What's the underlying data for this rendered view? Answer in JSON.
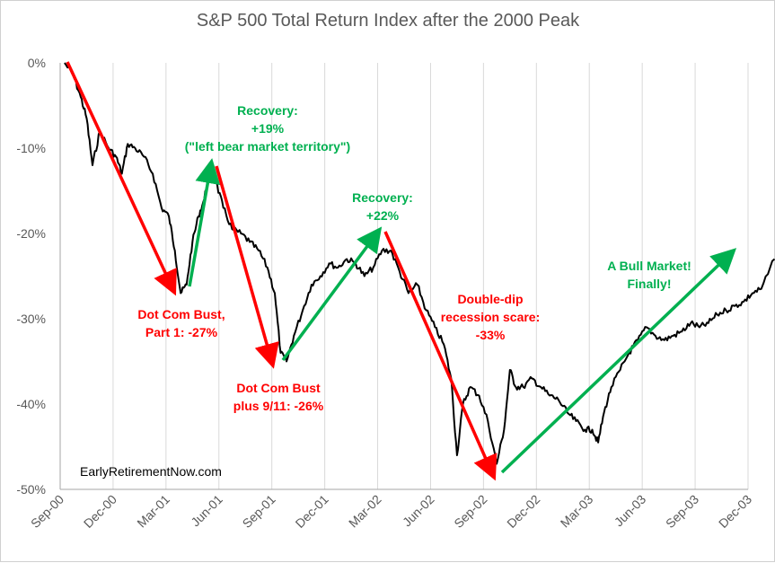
{
  "chart_data": {
    "type": "line",
    "title": "S&P 500 Total Return Index after the 2000 Peak",
    "watermark": "EarlyRetirementNow.com",
    "ylim": [
      -50,
      0
    ],
    "y_ticks": [
      "0%",
      "-10%",
      "-20%",
      "-30%",
      "-40%",
      "-50%"
    ],
    "y_tick_values": [
      0,
      -10,
      -20,
      -30,
      -40,
      -50
    ],
    "x_ticks": [
      "Sep-00",
      "Dec-00",
      "Mar-01",
      "Jun-01",
      "Sep-01",
      "Dec-01",
      "Mar-02",
      "Jun-02",
      "Sep-02",
      "Dec-02",
      "Mar-03",
      "Jun-03",
      "Sep-03",
      "Dec-03"
    ],
    "grid": "vertical",
    "series": [
      {
        "color": "#000000",
        "x": [
          "Sep-00",
          "Sep-00",
          "Oct-00",
          "Oct-00",
          "Oct-00",
          "Nov-00",
          "Nov-00",
          "Dec-00",
          "Dec-00",
          "Dec-00",
          "Jan-01",
          "Jan-01",
          "Feb-01",
          "Feb-01",
          "Mar-01",
          "Mar-01",
          "Mar-01",
          "Apr-01",
          "Apr-01",
          "Apr-01",
          "May-01",
          "May-01",
          "May-01",
          "Jun-01",
          "Jun-01",
          "Jul-01",
          "Jul-01",
          "Aug-01",
          "Aug-01",
          "Sep-01",
          "Sep-01",
          "Sep-01",
          "Oct-01",
          "Oct-01",
          "Nov-01",
          "Nov-01",
          "Dec-01",
          "Dec-01",
          "Jan-02",
          "Jan-02",
          "Feb-02",
          "Feb-02",
          "Mar-02",
          "Mar-02",
          "Apr-02",
          "Apr-02",
          "May-02",
          "May-02",
          "Jun-02",
          "Jun-02",
          "Jul-02",
          "Jul-02",
          "Jul-02",
          "Aug-02",
          "Aug-02",
          "Sep-02",
          "Sep-02",
          "Oct-02",
          "Oct-02",
          "Oct-02",
          "Nov-02",
          "Nov-02",
          "Dec-02",
          "Dec-02",
          "Jan-03",
          "Jan-03",
          "Feb-03",
          "Feb-03",
          "Mar-03",
          "Mar-03",
          "Mar-03",
          "Apr-03",
          "Apr-03",
          "May-03",
          "May-03",
          "Jun-03",
          "Jun-03",
          "Jul-03",
          "Jul-03",
          "Aug-03",
          "Aug-03",
          "Sep-03",
          "Sep-03",
          "Oct-03",
          "Oct-03",
          "Nov-03",
          "Nov-03",
          "Dec-03",
          "Dec-03",
          "Jan-04"
        ],
        "values": [
          0,
          -1.5,
          -4,
          -6.5,
          -12,
          -8,
          -10,
          -11,
          -13,
          -9.5,
          -10,
          -11,
          -13,
          -17,
          -18,
          -22,
          -27,
          -26,
          -21,
          -18,
          -16,
          -12,
          -14,
          -17,
          -19.5,
          -20,
          -21,
          -22,
          -24,
          -27,
          -34,
          -35,
          -32,
          -29,
          -26,
          -25,
          -23.5,
          -24,
          -23,
          -23.5,
          -25,
          -24,
          -22,
          -22,
          -24.5,
          -27,
          -26,
          -29,
          -31,
          -33,
          -37,
          -46,
          -40,
          -38,
          -39,
          -42,
          -47,
          -43,
          -36,
          -38,
          -38,
          -37,
          -38,
          -39,
          -39.5,
          -41,
          -42,
          -43,
          -43,
          -44.5,
          -41,
          -38,
          -36,
          -34,
          -32.5,
          -31,
          -32,
          -32.5,
          -32,
          -31.5,
          -30.5,
          -31,
          -30.5,
          -29.5,
          -29,
          -28.5,
          -28,
          -27,
          -26.5,
          -23
        ]
      }
    ],
    "annotations": [
      {
        "color": "red",
        "lines": [
          "Dot Com Bust,",
          "Part 1: -27%"
        ]
      },
      {
        "color": "green",
        "lines": [
          "Recovery:",
          "+19%",
          "(\"left bear market territory\")"
        ]
      },
      {
        "color": "red",
        "lines": [
          "Dot Com Bust",
          "plus 9/11: -26%"
        ]
      },
      {
        "color": "green",
        "lines": [
          "Recovery:",
          "+22%"
        ]
      },
      {
        "color": "red",
        "lines": [
          "Double-dip",
          "recession scare:",
          "-33%"
        ]
      },
      {
        "color": "green",
        "lines": [
          "A Bull Market!",
          "Finally!"
        ]
      }
    ],
    "colors": {
      "red": "#ff0000",
      "green": "#00b050",
      "line": "#000000",
      "grid": "#d9d9d9"
    }
  }
}
